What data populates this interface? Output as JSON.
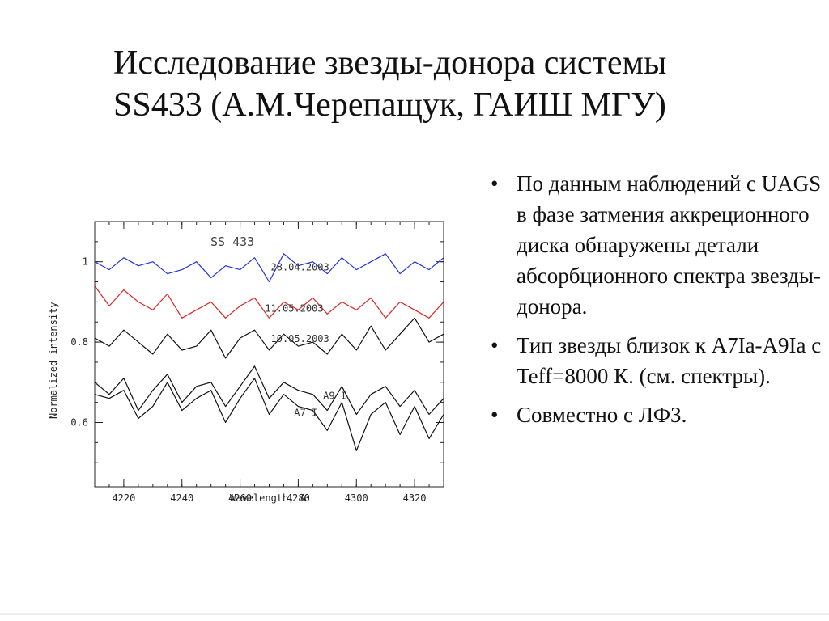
{
  "slide": {
    "title_line1": "Исследование звезды-донора системы",
    "title_line2": "SS433 (А.М.Черепащук, ГАИШ МГУ)",
    "bullets": [
      "По данным наблюдений с UAGS в фазе затмения аккреционного диска обнаружены детали абсорбционного спектра звезды- донора.",
      "Тип звезды близок к A7Ia-A9Ia с Teff=8000 К. (см. спектры).",
      "Совместно с ЛФЗ."
    ]
  },
  "chart_data": {
    "type": "line",
    "title": "SS 433",
    "xlabel": "Wavelength, A",
    "ylabel": "Normalized intensity",
    "xlim": [
      4210,
      4330
    ],
    "ylim": [
      0.44,
      1.1
    ],
    "xticks": [
      4220,
      4240,
      4260,
      4280,
      4300,
      4320
    ],
    "yticks": [
      0.6,
      0.8,
      1
    ],
    "x": [
      4210,
      4215,
      4220,
      4225,
      4230,
      4235,
      4240,
      4245,
      4250,
      4255,
      4260,
      4265,
      4270,
      4275,
      4280,
      4285,
      4290,
      4295,
      4300,
      4305,
      4310,
      4315,
      4320,
      4325,
      4330
    ],
    "series": [
      {
        "name": "28.04.2003",
        "color": "#2233dd",
        "values": [
          1.0,
          0.98,
          1.01,
          0.99,
          1.0,
          0.97,
          0.98,
          1.0,
          0.96,
          0.99,
          0.98,
          1.01,
          0.95,
          1.02,
          0.99,
          1.0,
          0.97,
          1.01,
          0.98,
          1.0,
          1.02,
          0.97,
          1.0,
          0.98,
          1.01
        ]
      },
      {
        "name": "11.05.2003",
        "color": "#dd2222",
        "values": [
          0.94,
          0.89,
          0.93,
          0.9,
          0.88,
          0.92,
          0.86,
          0.88,
          0.9,
          0.86,
          0.89,
          0.91,
          0.86,
          0.9,
          0.88,
          0.91,
          0.87,
          0.9,
          0.88,
          0.91,
          0.86,
          0.9,
          0.88,
          0.86,
          0.9
        ]
      },
      {
        "name": "10.05.2003",
        "color": "#111111",
        "values": [
          0.81,
          0.79,
          0.83,
          0.8,
          0.77,
          0.82,
          0.78,
          0.79,
          0.83,
          0.76,
          0.81,
          0.83,
          0.78,
          0.82,
          0.79,
          0.8,
          0.77,
          0.82,
          0.78,
          0.84,
          0.78,
          0.82,
          0.86,
          0.8,
          0.82
        ]
      },
      {
        "name": "A9 I",
        "color": "#111111",
        "values": [
          0.7,
          0.67,
          0.71,
          0.63,
          0.68,
          0.72,
          0.65,
          0.69,
          0.7,
          0.64,
          0.69,
          0.74,
          0.66,
          0.7,
          0.68,
          0.67,
          0.63,
          0.69,
          0.62,
          0.67,
          0.69,
          0.64,
          0.68,
          0.62,
          0.66
        ]
      },
      {
        "name": "A7 I",
        "color": "#111111",
        "values": [
          0.67,
          0.66,
          0.68,
          0.61,
          0.64,
          0.7,
          0.63,
          0.66,
          0.68,
          0.6,
          0.66,
          0.71,
          0.62,
          0.67,
          0.64,
          0.63,
          0.58,
          0.65,
          0.53,
          0.62,
          0.65,
          0.57,
          0.64,
          0.56,
          0.62
        ]
      }
    ]
  }
}
